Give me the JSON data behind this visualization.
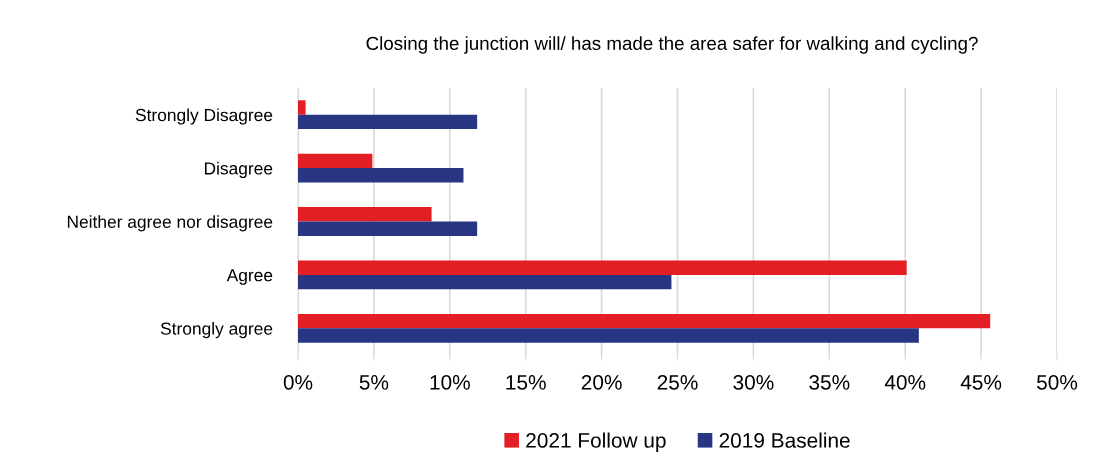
{
  "chart_data": {
    "type": "bar",
    "orientation": "horizontal",
    "title": "Closing the junction will/ has made the area safer for walking and cycling?",
    "categories": [
      "Strongly Disagree",
      "Disagree",
      "Neither agree nor disagree",
      "Agree",
      "Strongly agree"
    ],
    "series": [
      {
        "name": "2021 Follow up",
        "color": "#e31e24",
        "values": [
          0.5,
          4.9,
          8.8,
          40.1,
          45.6
        ]
      },
      {
        "name": "2019 Baseline",
        "color": "#283583",
        "values": [
          11.8,
          10.9,
          11.8,
          24.6,
          40.9
        ]
      }
    ],
    "xlim": [
      0,
      50
    ],
    "xticks": [
      {
        "value": 0,
        "label": "0%"
      },
      {
        "value": 5,
        "label": "5%"
      },
      {
        "value": 10,
        "label": "10%"
      },
      {
        "value": 15,
        "label": "15%"
      },
      {
        "value": 20,
        "label": "20%"
      },
      {
        "value": 25,
        "label": "25%"
      },
      {
        "value": 30,
        "label": "30%"
      },
      {
        "value": 35,
        "label": "35%"
      },
      {
        "value": 40,
        "label": "40%"
      },
      {
        "value": 45,
        "label": "45%"
      },
      {
        "value": 50,
        "label": "50%"
      }
    ],
    "grid": "x",
    "legend": "bottom"
  }
}
